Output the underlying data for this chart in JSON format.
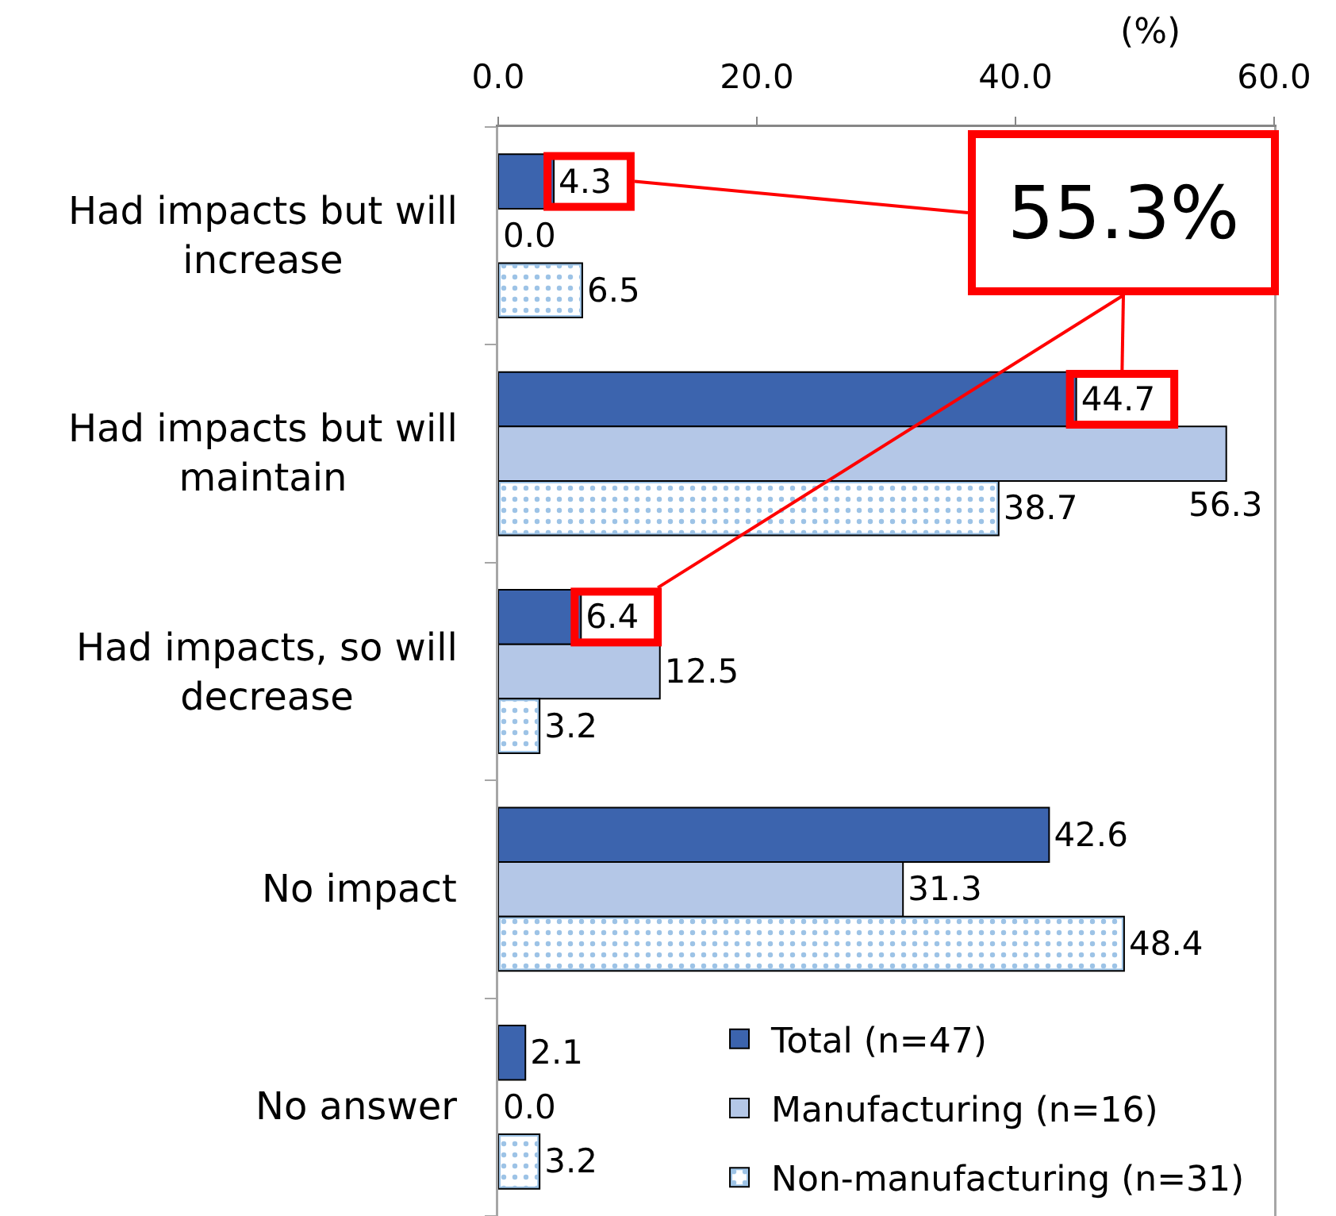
{
  "chart_data": {
    "type": "bar",
    "orientation": "horizontal",
    "xlabel": "(%)",
    "categories": [
      "Had impacts but will increase",
      "Had impacts but will maintain",
      "Had impacts, so will decrease",
      "No impact",
      "No answer"
    ],
    "series": [
      {
        "name": "Total (n=47)",
        "color": "#3c64ae",
        "values": [
          4.3,
          44.7,
          6.4,
          42.6,
          2.1
        ],
        "value_labels": [
          "4.3",
          "44.7",
          "6.4",
          "42.6",
          "2.1"
        ]
      },
      {
        "name": "Manufacturing (n=16)",
        "color": "#b4c7e7",
        "values": [
          0,
          56.3,
          12.5,
          31.3,
          0
        ],
        "value_labels": [
          "0.0",
          "56.3",
          "12.5",
          "31.3",
          "0.0"
        ]
      },
      {
        "name": "Non-manufacturing (n=31)",
        "color": "#9dc3e6",
        "values": [
          6.5,
          38.7,
          3.2,
          48.4,
          3.2
        ],
        "value_labels": [
          "6.5",
          "38.7",
          "3.2",
          "48.4",
          "3.2"
        ]
      }
    ],
    "xlim": [
      0,
      60
    ],
    "xticks": [
      {
        "value": 0,
        "label": "0.0"
      },
      {
        "value": 20,
        "label": "20.0"
      },
      {
        "value": 40,
        "label": "40.0"
      },
      {
        "value": 60,
        "label": "60.0"
      }
    ],
    "legend": "bottom right",
    "annotations": [
      "55.3%"
    ]
  }
}
